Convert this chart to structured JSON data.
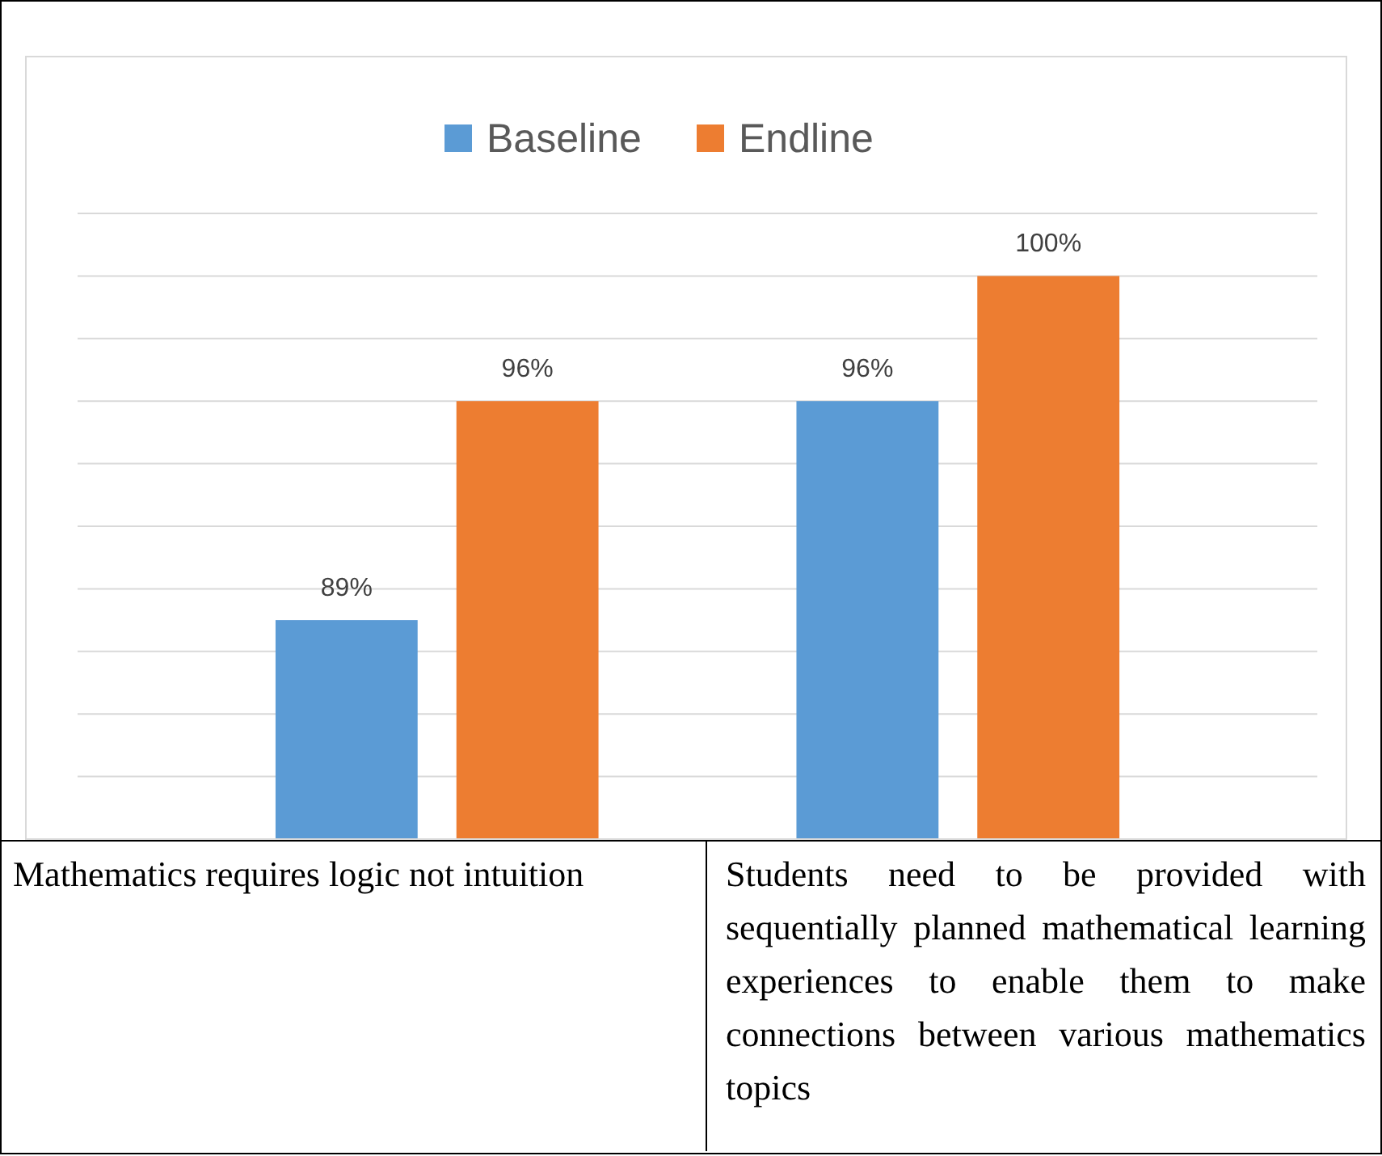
{
  "chart_data": {
    "type": "bar",
    "categories": [
      "Mathematics requires logic not intuition",
      "Students need to be provided with sequentially planned mathematical learning experiences to enable them to make connections between various mathematics topics"
    ],
    "series": [
      {
        "name": "Baseline",
        "color": "#5b9bd5",
        "values": [
          89,
          96
        ],
        "value_labels": [
          "89%",
          "96%"
        ]
      },
      {
        "name": "Endline",
        "color": "#ed7d31",
        "values": [
          96,
          100
        ],
        "value_labels": [
          "96%",
          "100%"
        ]
      }
    ],
    "ylim": [
      82,
      102
    ],
    "yticks": [
      {
        "value": 82,
        "label": null
      },
      {
        "value": 84,
        "label": null
      },
      {
        "value": 86,
        "label": null
      },
      {
        "value": 88,
        "label": null
      },
      {
        "value": 90,
        "label": null
      },
      {
        "value": 92,
        "label": null
      },
      {
        "value": 94,
        "label": null
      },
      {
        "value": 96,
        "label": null
      },
      {
        "value": 98,
        "label": null
      },
      {
        "value": 100,
        "label": null
      },
      {
        "value": 102,
        "label": null
      }
    ],
    "grid": "y",
    "legend": "top",
    "tick_labels": "x"
  }
}
